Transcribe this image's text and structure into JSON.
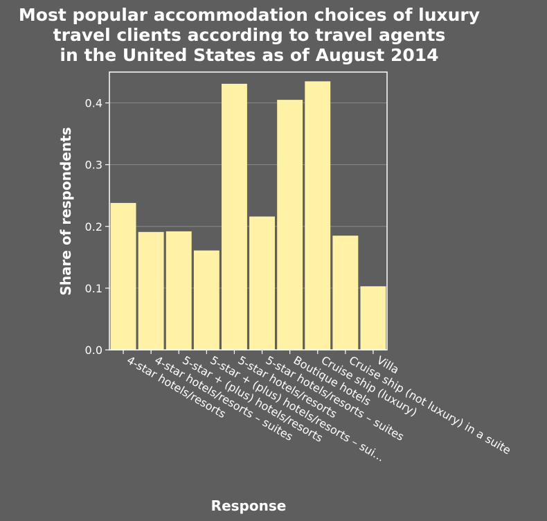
{
  "chart_data": {
    "type": "bar",
    "title_lines": [
      "Most popular accommodation choices of luxury",
      "travel clients according to travel agents",
      "in the United States as of August 2014"
    ],
    "xlabel": "Response",
    "ylabel": "Share of respondents",
    "categories": [
      "4-star hotels/resorts",
      "4-star hotels/resorts – suites",
      "5-star + (plus) hotels/resorts",
      "5-star + (plus) hotels/resorts – sui...",
      "5-star hotels/resorts",
      "5-star hotels/resorts – suites",
      "Boutique hotels",
      "Cruise ship (luxury)",
      "Cruise ship (not luxury) in a suite",
      "Villa"
    ],
    "values": [
      0.238,
      0.191,
      0.192,
      0.161,
      0.431,
      0.216,
      0.405,
      0.435,
      0.185,
      0.103
    ],
    "ylim": [
      0,
      0.45
    ],
    "yticks": [
      "0.0",
      "0.1",
      "0.2",
      "0.3",
      "0.4"
    ],
    "grid": true,
    "colors": {
      "bar": "#fff1a6",
      "background": "#5e5e5e",
      "grid": "#8a8a8a",
      "text": "#ffffff"
    }
  }
}
